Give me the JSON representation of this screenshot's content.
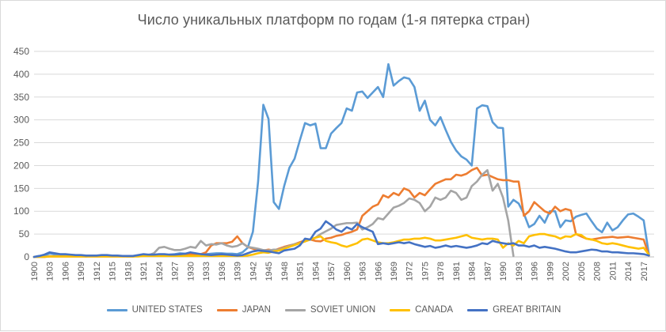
{
  "chart_data": {
    "type": "line",
    "title": "Число уникальных платформ по годам (1-я пятерка стран)",
    "xlabel": "",
    "ylabel": "",
    "ylim": [
      0,
      450
    ],
    "yticks": [
      0,
      50,
      100,
      150,
      200,
      250,
      300,
      350,
      400,
      450
    ],
    "xlim": [
      1900,
      2019
    ],
    "xticks": [
      1900,
      1903,
      1906,
      1909,
      1912,
      1915,
      1918,
      1921,
      1924,
      1927,
      1930,
      1933,
      1936,
      1939,
      1942,
      1945,
      1948,
      1951,
      1954,
      1957,
      1960,
      1963,
      1966,
      1969,
      1972,
      1975,
      1978,
      1981,
      1984,
      1987,
      1990,
      1993,
      1996,
      1999,
      2002,
      2005,
      2008,
      2011,
      2014,
      2017
    ],
    "grid": true,
    "legend_position": "bottom",
    "series": [
      {
        "name": "UNITED STATES",
        "color": "#5b9bd5",
        "x": [
          1900,
          1901,
          1902,
          1903,
          1904,
          1905,
          1906,
          1907,
          1908,
          1909,
          1910,
          1911,
          1912,
          1913,
          1914,
          1915,
          1916,
          1917,
          1918,
          1919,
          1920,
          1921,
          1922,
          1923,
          1924,
          1925,
          1926,
          1927,
          1928,
          1929,
          1930,
          1931,
          1932,
          1933,
          1934,
          1935,
          1936,
          1937,
          1938,
          1939,
          1940,
          1941,
          1942,
          1943,
          1944,
          1945,
          1946,
          1947,
          1948,
          1949,
          1950,
          1951,
          1952,
          1953,
          1954,
          1955,
          1956,
          1957,
          1958,
          1959,
          1960,
          1961,
          1962,
          1963,
          1964,
          1965,
          1966,
          1967,
          1968,
          1969,
          1970,
          1971,
          1972,
          1973,
          1974,
          1975,
          1976,
          1977,
          1978,
          1979,
          1980,
          1981,
          1982,
          1983,
          1984,
          1985,
          1986,
          1987,
          1988,
          1989,
          1990,
          1991,
          1992,
          1993,
          1994,
          1995,
          1996,
          1997,
          1998,
          1999,
          2000,
          2001,
          2002,
          2003,
          2004,
          2005,
          2006,
          2007,
          2008,
          2009,
          2010,
          2011,
          2012,
          2013,
          2014,
          2015,
          2016,
          2017,
          2018
        ],
        "values": [
          0,
          2,
          3,
          8,
          6,
          4,
          3,
          3,
          2,
          2,
          1,
          2,
          2,
          2,
          3,
          3,
          2,
          2,
          1,
          1,
          2,
          4,
          3,
          3,
          4,
          4,
          5,
          6,
          8,
          7,
          6,
          5,
          6,
          6,
          7,
          8,
          8,
          7,
          7,
          6,
          10,
          20,
          55,
          165,
          333,
          302,
          120,
          105,
          155,
          195,
          215,
          255,
          293,
          288,
          292,
          238,
          238,
          270,
          282,
          293,
          325,
          320,
          360,
          362,
          348,
          360,
          372,
          350,
          422,
          375,
          385,
          393,
          390,
          372,
          320,
          342,
          300,
          288,
          306,
          278,
          252,
          233,
          220,
          213,
          200,
          325,
          332,
          330,
          295,
          283,
          282,
          110,
          125,
          117,
          95,
          65,
          72,
          90,
          75,
          100,
          100,
          65,
          80,
          78,
          88,
          92,
          95,
          78,
          62,
          54,
          75,
          58,
          65,
          80,
          93,
          95,
          88,
          80,
          5
        ]
      },
      {
        "name": "JAPAN",
        "color": "#ed7d31",
        "x": [
          1900,
          1901,
          1902,
          1903,
          1904,
          1905,
          1906,
          1907,
          1908,
          1909,
          1910,
          1911,
          1912,
          1913,
          1914,
          1915,
          1916,
          1917,
          1918,
          1919,
          1920,
          1921,
          1922,
          1923,
          1924,
          1925,
          1926,
          1927,
          1928,
          1929,
          1930,
          1931,
          1932,
          1933,
          1934,
          1935,
          1936,
          1937,
          1938,
          1939,
          1940,
          1941,
          1942,
          1943,
          1944,
          1945,
          1946,
          1947,
          1948,
          1949,
          1950,
          1951,
          1952,
          1953,
          1954,
          1955,
          1956,
          1957,
          1958,
          1959,
          1960,
          1961,
          1962,
          1963,
          1964,
          1965,
          1966,
          1967,
          1968,
          1969,
          1970,
          1971,
          1972,
          1973,
          1974,
          1975,
          1976,
          1977,
          1978,
          1979,
          1980,
          1981,
          1982,
          1983,
          1984,
          1985,
          1986,
          1987,
          1988,
          1989,
          1990,
          1991,
          1992,
          1993,
          1994,
          1995,
          1996,
          1997,
          1998,
          1999,
          2000,
          2001,
          2002,
          2003,
          2004,
          2005,
          2006,
          2007,
          2008,
          2009,
          2010,
          2011,
          2012,
          2013,
          2014,
          2015,
          2016,
          2017,
          2018
        ],
        "values": [
          0,
          0,
          0,
          1,
          1,
          1,
          1,
          1,
          1,
          1,
          1,
          1,
          1,
          1,
          1,
          1,
          1,
          1,
          1,
          1,
          2,
          3,
          3,
          3,
          4,
          4,
          4,
          4,
          6,
          6,
          6,
          6,
          6,
          10,
          25,
          30,
          30,
          30,
          33,
          45,
          30,
          22,
          18,
          15,
          14,
          16,
          14,
          18,
          22,
          25,
          28,
          32,
          36,
          38,
          35,
          34,
          40,
          42,
          46,
          48,
          52,
          55,
          60,
          90,
          100,
          110,
          115,
          135,
          130,
          140,
          135,
          150,
          145,
          130,
          140,
          135,
          148,
          160,
          165,
          170,
          170,
          180,
          178,
          182,
          190,
          195,
          178,
          180,
          175,
          170,
          168,
          168,
          165,
          165,
          90,
          100,
          120,
          110,
          100,
          95,
          110,
          100,
          105,
          102,
          50,
          45,
          40,
          38,
          40,
          42,
          43,
          44,
          42,
          43,
          44,
          42,
          40,
          38,
          3
        ]
      },
      {
        "name": "SOVIET UNION",
        "color": "#a5a5a5",
        "x": [
          1900,
          1901,
          1902,
          1903,
          1904,
          1905,
          1906,
          1907,
          1908,
          1909,
          1910,
          1911,
          1912,
          1913,
          1914,
          1915,
          1916,
          1917,
          1918,
          1919,
          1920,
          1921,
          1922,
          1923,
          1924,
          1925,
          1926,
          1927,
          1928,
          1929,
          1930,
          1931,
          1932,
          1933,
          1934,
          1935,
          1936,
          1937,
          1938,
          1939,
          1940,
          1941,
          1942,
          1943,
          1944,
          1945,
          1946,
          1947,
          1948,
          1949,
          1950,
          1951,
          1952,
          1953,
          1954,
          1955,
          1956,
          1957,
          1958,
          1959,
          1960,
          1961,
          1962,
          1963,
          1964,
          1965,
          1966,
          1967,
          1968,
          1969,
          1970,
          1971,
          1972,
          1973,
          1974,
          1975,
          1976,
          1977,
          1978,
          1979,
          1980,
          1981,
          1982,
          1983,
          1984,
          1985,
          1986,
          1987,
          1988,
          1989,
          1990,
          1991,
          1992
        ],
        "values": [
          0,
          0,
          0,
          2,
          2,
          2,
          2,
          2,
          2,
          2,
          2,
          2,
          2,
          2,
          2,
          2,
          2,
          2,
          2,
          2,
          2,
          4,
          4,
          8,
          20,
          22,
          18,
          15,
          15,
          18,
          22,
          20,
          35,
          25,
          28,
          27,
          30,
          25,
          22,
          24,
          30,
          22,
          20,
          18,
          15,
          14,
          16,
          16,
          20,
          24,
          28,
          30,
          34,
          38,
          42,
          50,
          56,
          62,
          70,
          72,
          74,
          74,
          75,
          60,
          65,
          72,
          85,
          82,
          95,
          108,
          112,
          118,
          128,
          125,
          118,
          100,
          110,
          130,
          125,
          130,
          145,
          140,
          125,
          130,
          155,
          165,
          180,
          190,
          145,
          160,
          130,
          80,
          2
        ]
      },
      {
        "name": "CANADA",
        "color": "#ffc000",
        "x": [
          1900,
          1901,
          1902,
          1903,
          1904,
          1905,
          1906,
          1907,
          1908,
          1909,
          1910,
          1911,
          1912,
          1913,
          1914,
          1915,
          1916,
          1917,
          1918,
          1919,
          1920,
          1921,
          1922,
          1923,
          1924,
          1925,
          1926,
          1927,
          1928,
          1929,
          1930,
          1931,
          1932,
          1933,
          1934,
          1935,
          1936,
          1937,
          1938,
          1939,
          1940,
          1941,
          1942,
          1943,
          1944,
          1945,
          1946,
          1947,
          1948,
          1949,
          1950,
          1951,
          1952,
          1953,
          1954,
          1955,
          1956,
          1957,
          1958,
          1959,
          1960,
          1961,
          1962,
          1963,
          1964,
          1965,
          1966,
          1967,
          1968,
          1969,
          1970,
          1971,
          1972,
          1973,
          1974,
          1975,
          1976,
          1977,
          1978,
          1979,
          1980,
          1981,
          1982,
          1983,
          1984,
          1985,
          1986,
          1987,
          1988,
          1989,
          1990,
          1991,
          1992,
          1993,
          1994,
          1995,
          1996,
          1997,
          1998,
          1999,
          2000,
          2001,
          2002,
          2003,
          2004,
          2005,
          2006,
          2007,
          2008,
          2009,
          2010,
          2011,
          2012,
          2013,
          2014,
          2015,
          2016,
          2017,
          2018
        ],
        "values": [
          0,
          0,
          0,
          1,
          1,
          1,
          1,
          1,
          1,
          1,
          1,
          1,
          1,
          1,
          1,
          1,
          1,
          1,
          1,
          1,
          1,
          2,
          2,
          2,
          2,
          2,
          2,
          2,
          2,
          2,
          2,
          2,
          2,
          2,
          2,
          2,
          2,
          2,
          2,
          2,
          2,
          3,
          5,
          8,
          10,
          9,
          12,
          14,
          18,
          22,
          26,
          30,
          34,
          38,
          42,
          45,
          35,
          32,
          30,
          25,
          22,
          26,
          30,
          38,
          40,
          36,
          32,
          30,
          30,
          32,
          35,
          38,
          38,
          40,
          40,
          42,
          40,
          36,
          36,
          38,
          40,
          42,
          45,
          48,
          42,
          40,
          38,
          40,
          40,
          38,
          20,
          30,
          25,
          35,
          30,
          45,
          48,
          50,
          50,
          47,
          45,
          40,
          45,
          44,
          50,
          48,
          40,
          38,
          35,
          30,
          28,
          30,
          28,
          25,
          22,
          20,
          18,
          20,
          5
        ]
      },
      {
        "name": "GREAT BRITAIN",
        "color": "#4472c4",
        "x": [
          1900,
          1901,
          1902,
          1903,
          1904,
          1905,
          1906,
          1907,
          1908,
          1909,
          1910,
          1911,
          1912,
          1913,
          1914,
          1915,
          1916,
          1917,
          1918,
          1919,
          1920,
          1921,
          1922,
          1923,
          1924,
          1925,
          1926,
          1927,
          1928,
          1929,
          1930,
          1931,
          1932,
          1933,
          1934,
          1935,
          1936,
          1937,
          1938,
          1939,
          1940,
          1941,
          1942,
          1943,
          1944,
          1945,
          1946,
          1947,
          1948,
          1949,
          1950,
          1951,
          1952,
          1953,
          1954,
          1955,
          1956,
          1957,
          1958,
          1959,
          1960,
          1961,
          1962,
          1963,
          1964,
          1965,
          1966,
          1967,
          1968,
          1969,
          1970,
          1971,
          1972,
          1973,
          1974,
          1975,
          1976,
          1977,
          1978,
          1979,
          1980,
          1981,
          1982,
          1983,
          1984,
          1985,
          1986,
          1987,
          1988,
          1989,
          1990,
          1991,
          1992,
          1993,
          1994,
          1995,
          1996,
          1997,
          1998,
          1999,
          2000,
          2001,
          2002,
          2003,
          2004,
          2005,
          2006,
          2007,
          2008,
          2009,
          2010,
          2011,
          2012,
          2013,
          2014,
          2015,
          2016,
          2017,
          2018
        ],
        "values": [
          0,
          2,
          5,
          10,
          8,
          6,
          6,
          5,
          4,
          4,
          3,
          3,
          3,
          4,
          4,
          3,
          3,
          2,
          2,
          2,
          4,
          6,
          5,
          5,
          6,
          6,
          5,
          5,
          6,
          7,
          10,
          8,
          6,
          5,
          4,
          5,
          6,
          5,
          4,
          3,
          4,
          8,
          12,
          14,
          13,
          12,
          10,
          8,
          14,
          16,
          18,
          25,
          40,
          38,
          55,
          62,
          78,
          70,
          60,
          55,
          65,
          60,
          72,
          65,
          60,
          55,
          28,
          30,
          28,
          30,
          32,
          30,
          32,
          28,
          25,
          22,
          24,
          20,
          22,
          25,
          22,
          24,
          22,
          20,
          22,
          25,
          30,
          28,
          35,
          32,
          30,
          28,
          30,
          25,
          25,
          22,
          25,
          20,
          22,
          20,
          18,
          15,
          12,
          10,
          10,
          12,
          14,
          16,
          15,
          12,
          12,
          10,
          10,
          9,
          8,
          8,
          7,
          6,
          3
        ]
      }
    ]
  }
}
